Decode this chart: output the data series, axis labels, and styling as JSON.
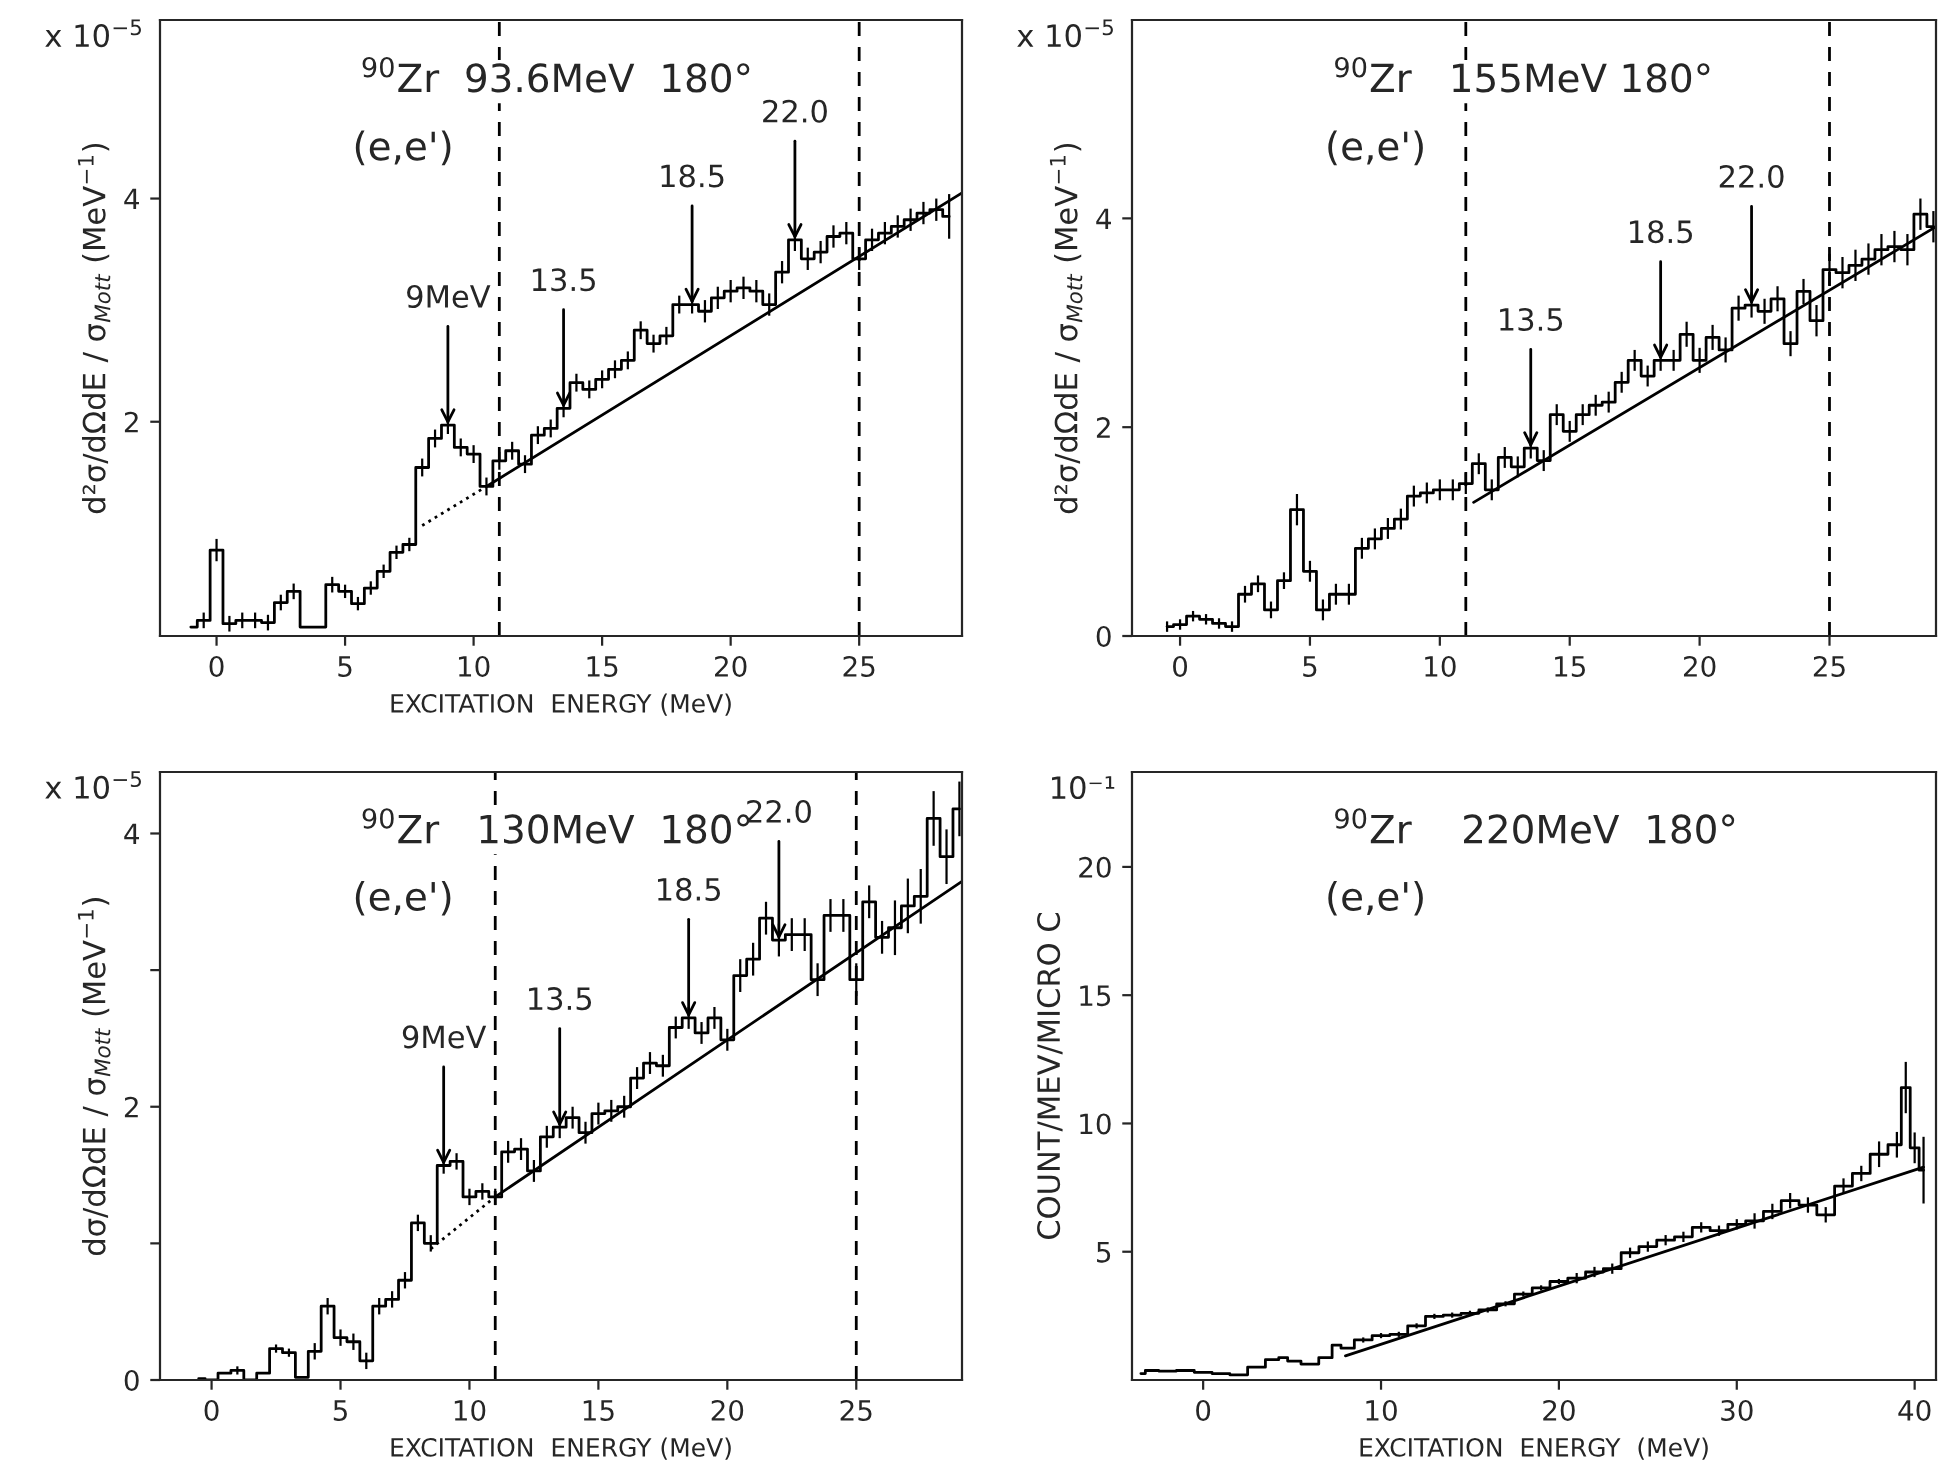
{
  "chart_data": [
    {
      "type": "step",
      "title": "$^{90}$Zr  93.6MeV  180°",
      "subtitle": "(e,e')",
      "xlabel": "EXCITATION  ENERGY (MeV)",
      "ylabel": "d²σ/dΩdE / σ$_{Mott}$ (MeV$^{−1}$)",
      "xlim": [
        -2.2,
        29
      ],
      "xticks": [
        0,
        5,
        10,
        15,
        20,
        25
      ],
      "ylim": [
        0.08,
        5.6
      ],
      "yticks": [
        2,
        4
      ],
      "series": [
        {
          "color": "#000000",
          "x": [
            -1,
            -0.5,
            0,
            0.5,
            1,
            1.5,
            2,
            2.5,
            3,
            3.5,
            4,
            4.5,
            5,
            5.5,
            6,
            6.5,
            7,
            7.5,
            8,
            8.5,
            9,
            9.5,
            10,
            10.5,
            11,
            11.5,
            12,
            12.5,
            13,
            13.5,
            14,
            14.5,
            15,
            15.5,
            16,
            16.5,
            17,
            17.5,
            18,
            18.5,
            19,
            19.5,
            20,
            20.5,
            21,
            21.5,
            22,
            22.5,
            23,
            23.5,
            24,
            24.5,
            25,
            25.5,
            26,
            26.5,
            27,
            27.5,
            28,
            28.5
          ],
          "values": [
            0.16,
            0.22,
            0.85,
            0.19,
            0.22,
            0.22,
            0.2,
            0.38,
            0.48,
            0.16,
            0.16,
            0.54,
            0.48,
            0.37,
            0.51,
            0.66,
            0.83,
            0.9,
            1.59,
            1.85,
            1.97,
            1.77,
            1.71,
            1.42,
            1.65,
            1.74,
            1.62,
            1.88,
            1.94,
            2.12,
            2.35,
            2.29,
            2.38,
            2.47,
            2.55,
            2.82,
            2.7,
            2.77,
            3.05,
            3.05,
            2.99,
            3.11,
            3.17,
            3.2,
            3.17,
            3.05,
            3.34,
            3.63,
            3.46,
            3.52,
            3.66,
            3.69,
            3.46,
            3.63,
            3.69,
            3.75,
            3.81,
            3.87,
            3.9,
            3.84
          ],
          "errors": [
            null,
            0.07,
            0.1,
            0.07,
            0.07,
            0.07,
            0.07,
            0.07,
            0.07,
            null,
            null,
            0.07,
            0.06,
            0.06,
            0.06,
            0.06,
            0.06,
            0.06,
            0.08,
            0.08,
            0.08,
            0.08,
            0.08,
            0.08,
            0.08,
            0.08,
            0.08,
            0.08,
            0.08,
            0.08,
            0.08,
            0.08,
            0.08,
            0.08,
            0.08,
            0.08,
            0.08,
            0.08,
            0.08,
            0.08,
            0.1,
            0.1,
            0.1,
            0.1,
            0.1,
            0.1,
            0.1,
            0.1,
            0.1,
            0.1,
            0.1,
            0.1,
            0.1,
            0.1,
            0.1,
            0.1,
            0.1,
            0.1,
            0.1,
            0.2
          ]
        },
        {
          "type": "line",
          "color": "#000000",
          "x": [
            10.5,
            29
          ],
          "values": [
            1.42,
            4.05
          ]
        },
        {
          "type": "line",
          "line_style": "dotted",
          "color": "#000000",
          "x": [
            8,
            10.5
          ],
          "values": [
            1.07,
            1.42
          ]
        }
      ],
      "ref_lines": [
        {
          "axis": "x",
          "value": 11,
          "line_style": "dashed",
          "color": "#000000"
        },
        {
          "axis": "x",
          "value": 25,
          "line_style": "dashed",
          "color": "#000000"
        }
      ],
      "annotations": [
        "x 10$^{−5}$",
        {
          "text": "9MeV",
          "x": 9,
          "y": 1.97
        },
        {
          "text": "13.5",
          "x": 13.5,
          "y": 2.12
        },
        {
          "text": "18.5",
          "x": 18.5,
          "y": 3.05
        },
        {
          "text": "22.0",
          "x": 22.5,
          "y": 3.63
        }
      ]
    },
    {
      "type": "step",
      "title": "$^{90}$Zr   155MeV 180°",
      "subtitle": "(e,e')",
      "ylabel": "d²σ/dΩdE / σ$_{Mott}$ (MeV$^{−1}$)",
      "xlim": [
        -1.85,
        29.1
      ],
      "xticks": [
        0,
        5,
        10,
        15,
        20,
        25
      ],
      "ylim": [
        0,
        5.9
      ],
      "yticks": [
        0,
        2,
        4
      ],
      "series": [
        {
          "color": "#000000",
          "x": [
            -0.5,
            0,
            0.5,
            1,
            1.5,
            2,
            2.5,
            3,
            3.5,
            4,
            4.5,
            5,
            5.5,
            6,
            6.5,
            7,
            7.5,
            8,
            8.5,
            9,
            9.5,
            10,
            10.5,
            11,
            11.5,
            12,
            12.5,
            13,
            13.5,
            14,
            14.5,
            15,
            15.5,
            16,
            16.5,
            17,
            17.5,
            18,
            18.5,
            19,
            19.5,
            20,
            20.5,
            21,
            21.5,
            22,
            22.5,
            23,
            23.5,
            24,
            24.5,
            25,
            25.5,
            26,
            26.5,
            27,
            27.5,
            28,
            28.5,
            29
          ],
          "values": [
            0.09,
            0.11,
            0.19,
            0.16,
            0.12,
            0.09,
            0.4,
            0.5,
            0.25,
            0.53,
            1.21,
            0.62,
            0.25,
            0.4,
            0.4,
            0.84,
            0.93,
            1.03,
            1.12,
            1.34,
            1.37,
            1.4,
            1.4,
            1.46,
            1.65,
            1.4,
            1.71,
            1.62,
            1.8,
            1.68,
            2.12,
            1.96,
            2.12,
            2.21,
            2.24,
            2.43,
            2.64,
            2.49,
            2.64,
            2.64,
            2.89,
            2.64,
            2.86,
            2.74,
            3.14,
            3.17,
            3.11,
            3.23,
            2.8,
            3.3,
            3.02,
            3.51,
            3.48,
            3.55,
            3.61,
            3.7,
            3.73,
            3.7,
            4.04,
            3.92
          ],
          "errors": [
            0.05,
            0.05,
            0.05,
            0.05,
            0.05,
            0.05,
            0.08,
            0.08,
            0.08,
            0.08,
            0.15,
            0.1,
            0.1,
            0.1,
            0.1,
            0.1,
            0.1,
            0.1,
            0.1,
            0.1,
            0.1,
            0.1,
            0.1,
            0.1,
            0.1,
            0.1,
            0.1,
            0.1,
            0.1,
            0.1,
            0.1,
            0.1,
            0.1,
            0.1,
            0.1,
            0.1,
            0.1,
            0.1,
            0.1,
            0.1,
            0.12,
            0.12,
            0.12,
            0.12,
            0.12,
            0.12,
            0.12,
            0.12,
            0.12,
            0.12,
            0.15,
            0.15,
            0.15,
            0.15,
            0.15,
            0.15,
            0.15,
            0.15,
            0.15,
            0.15
          ]
        },
        {
          "type": "line",
          "color": "#000000",
          "x": [
            11.3,
            29.1
          ],
          "values": [
            1.28,
            3.92
          ]
        }
      ],
      "ref_lines": [
        {
          "axis": "x",
          "value": 11,
          "line_style": "dashed",
          "color": "#000000"
        },
        {
          "axis": "x",
          "value": 25,
          "line_style": "dashed",
          "color": "#000000"
        }
      ],
      "annotations": [
        "x 10$^{−5}$",
        {
          "text": "13.5",
          "x": 13.5,
          "y": 1.8
        },
        {
          "text": "18.5",
          "x": 18.5,
          "y": 2.64
        },
        {
          "text": "22.0",
          "x": 22,
          "y": 3.17
        }
      ]
    },
    {
      "type": "step",
      "title": "$^{90}$Zr   130MeV  180°",
      "subtitle": "(e,e')",
      "xlabel": "EXCITATION  ENERGY (MeV)",
      "ylabel": "dσ/dΩdE / σ$_{Mott}$ (MeV$^{−1}$)",
      "xlim": [
        -2.0,
        29.1
      ],
      "xticks": [
        0,
        5,
        10,
        15,
        20,
        25
      ],
      "ylim": [
        0,
        4.45
      ],
      "yticks": [
        0,
        {
          "value": 1,
          "label": null
        },
        2,
        {
          "value": 3,
          "label": null
        },
        4
      ],
      "series": [
        {
          "color": "#000000",
          "x": [
            -0.5,
            0,
            0.5,
            1,
            1.5,
            2,
            2.5,
            3,
            3.5,
            4,
            4.5,
            5,
            5.5,
            6,
            6.5,
            7,
            7.5,
            8,
            8.5,
            9,
            9.5,
            10,
            10.5,
            11,
            11.5,
            12,
            12.5,
            13,
            13.5,
            14,
            14.5,
            15,
            15.5,
            16,
            16.5,
            17,
            17.5,
            18,
            18.5,
            19,
            19.5,
            20,
            20.5,
            21,
            21.5,
            22,
            22.5,
            23,
            23.5,
            24,
            24.5,
            25,
            25.5,
            26,
            26.5,
            27,
            27.5,
            28,
            28.5,
            29
          ],
          "values": [
            0.01,
            0.0,
            0.05,
            0.07,
            0.0,
            0.05,
            0.23,
            0.2,
            0.02,
            0.21,
            0.54,
            0.31,
            0.28,
            0.14,
            0.54,
            0.59,
            0.73,
            1.15,
            1.0,
            1.57,
            1.6,
            1.34,
            1.38,
            1.34,
            1.67,
            1.69,
            1.53,
            1.78,
            1.85,
            1.92,
            1.81,
            1.95,
            1.97,
            2.0,
            2.21,
            2.32,
            2.3,
            2.58,
            2.65,
            2.54,
            2.65,
            2.49,
            2.96,
            3.08,
            3.38,
            3.22,
            3.26,
            3.26,
            2.93,
            3.4,
            3.4,
            2.93,
            3.5,
            3.24,
            3.31,
            3.47,
            3.54,
            4.11,
            3.83,
            4.18
          ],
          "errors": [
            null,
            null,
            null,
            0.03,
            null,
            null,
            0.03,
            0.03,
            null,
            0.06,
            0.06,
            0.06,
            0.06,
            0.06,
            0.06,
            0.06,
            0.06,
            0.06,
            0.06,
            0.06,
            0.06,
            0.06,
            0.06,
            0.06,
            0.08,
            0.08,
            0.08,
            0.08,
            0.08,
            0.08,
            0.08,
            0.08,
            0.08,
            0.08,
            0.08,
            0.08,
            0.08,
            0.08,
            0.08,
            0.08,
            0.08,
            0.08,
            0.12,
            0.12,
            0.12,
            0.12,
            0.12,
            0.12,
            0.12,
            0.12,
            0.12,
            0.12,
            0.12,
            0.12,
            0.2,
            0.2,
            0.2,
            0.2,
            0.2,
            0.2
          ]
        },
        {
          "type": "line",
          "color": "#000000",
          "x": [
            11,
            29.1
          ],
          "values": [
            1.34,
            3.65
          ]
        },
        {
          "type": "line",
          "line_style": "dotted",
          "color": "#000000",
          "x": [
            8.5,
            11
          ],
          "values": [
            0.96,
            1.34
          ]
        }
      ],
      "ref_lines": [
        {
          "axis": "x",
          "value": 11,
          "line_style": "dashed",
          "color": "#000000"
        },
        {
          "axis": "x",
          "value": 25,
          "line_style": "dashed",
          "color": "#000000"
        }
      ],
      "annotations": [
        "x 10$^{−5}$",
        {
          "text": "9MeV",
          "x": 9,
          "y": 1.57
        },
        {
          "text": "13.5",
          "x": 13.5,
          "y": 1.85
        },
        {
          "text": "18.5",
          "x": 18.5,
          "y": 2.65
        },
        {
          "text": "22.0",
          "x": 22,
          "y": 3.22
        }
      ]
    },
    {
      "type": "step",
      "title": "$^{90}$Zr    220MeV  180°",
      "subtitle": "(e,e')",
      "xlabel": "EXCITATION  ENERGY  (MeV)",
      "ylabel": "COUNT/MEV/MICRO C",
      "xlim": [
        -4,
        41.2
      ],
      "xticks": [
        0,
        10,
        20,
        30,
        40
      ],
      "ylim": [
        0,
        23.7
      ],
      "yticks": [
        5,
        10,
        15,
        20
      ],
      "series": [
        {
          "color": "#000000",
          "x": [
            -3.5,
            -3,
            -2,
            -1,
            0,
            1,
            2,
            3,
            4,
            4.5,
            5,
            6,
            7,
            7.5,
            8,
            9,
            10,
            11,
            12,
            13,
            14,
            15,
            16,
            17,
            18,
            19,
            20,
            21,
            22,
            23,
            24,
            25,
            26,
            27,
            28,
            29,
            30,
            31,
            32,
            33,
            34,
            35,
            36,
            37,
            38,
            39,
            39.5,
            40,
            40.5
          ],
          "values": [
            0.25,
            0.37,
            0.35,
            0.37,
            0.3,
            0.25,
            0.2,
            0.5,
            0.79,
            0.87,
            0.74,
            0.62,
            0.87,
            1.36,
            1.24,
            1.56,
            1.73,
            1.78,
            2.11,
            2.48,
            2.53,
            2.6,
            2.73,
            2.97,
            3.35,
            3.59,
            3.84,
            3.97,
            4.21,
            4.34,
            4.96,
            5.2,
            5.45,
            5.58,
            5.95,
            5.82,
            6.07,
            6.2,
            6.57,
            6.99,
            6.82,
            6.44,
            7.56,
            8.05,
            8.8,
            9.17,
            11.4,
            9.05,
            8.18
          ],
          "errors": [
            null,
            null,
            null,
            null,
            null,
            null,
            null,
            null,
            null,
            null,
            null,
            null,
            null,
            null,
            null,
            0.1,
            0.1,
            0.1,
            0.1,
            0.1,
            0.1,
            0.1,
            0.1,
            0.1,
            0.1,
            0.1,
            0.1,
            0.2,
            0.2,
            0.2,
            0.2,
            0.2,
            0.2,
            0.2,
            0.2,
            0.2,
            0.2,
            0.3,
            0.3,
            0.3,
            0.3,
            0.3,
            0.3,
            0.3,
            0.5,
            0.5,
            1.0,
            0.6,
            1.3
          ]
        },
        {
          "type": "line",
          "color": "#000000",
          "x": [
            8,
            40.5
          ],
          "values": [
            0.94,
            8.3
          ]
        }
      ],
      "annotations": [
        "10⁻¹"
      ]
    }
  ]
}
